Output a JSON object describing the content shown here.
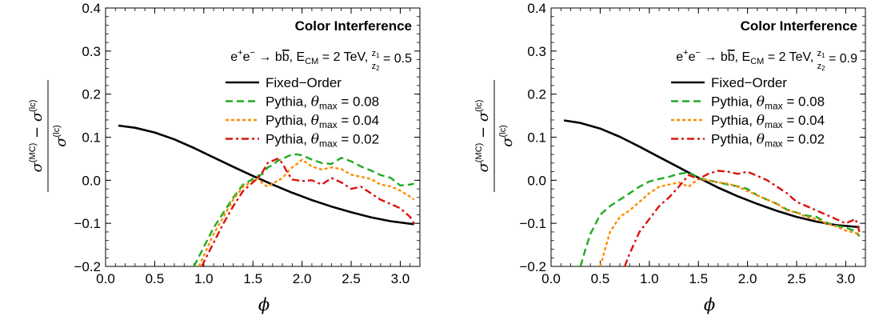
{
  "chart_data": [
    {
      "type": "line",
      "title": "Color Interference",
      "process": {
        "lhs": "e",
        "lhs_sup": "+",
        "lhs2": "e",
        "lhs2_sup": "−",
        "arrow": " → ",
        "final": "b",
        "final_bar": "b",
        "sep": ", ",
        "ecm_sym": "E",
        "ecm_sub": "CM",
        "ecm_val": " = 2 TeV, ",
        "ratio_num": "z",
        "ratio_num_sub": "1",
        "ratio_den": "z",
        "ratio_den_sub": "2",
        "ratio_val": " = 0.5"
      },
      "xlabel": "ϕ",
      "ylabel": {
        "sigma": "σ",
        "mc": "(MC)",
        "minus": " − ",
        "lc": "(lc)"
      },
      "xlim": [
        0,
        3.2
      ],
      "ylim": [
        -0.2,
        0.4
      ],
      "x_ticks": [
        "0.0",
        "0.5",
        "1.0",
        "1.5",
        "2.0",
        "2.5",
        "3.0"
      ],
      "y_ticks": [
        "−0.2",
        "−0.1",
        "0.0",
        "0.1",
        "0.2",
        "0.3",
        "0.4"
      ],
      "grid": false,
      "legend_position": "top-right",
      "series": [
        {
          "name": "Fixed−Order",
          "color": "#000000",
          "style": "solid",
          "x": [
            0.13,
            0.3,
            0.5,
            0.7,
            0.9,
            1.1,
            1.3,
            1.5,
            1.7,
            1.9,
            2.1,
            2.3,
            2.5,
            2.7,
            2.9,
            3.1,
            3.14
          ],
          "y": [
            0.127,
            0.122,
            0.111,
            0.095,
            0.075,
            0.053,
            0.031,
            0.01,
            -0.01,
            -0.029,
            -0.046,
            -0.061,
            -0.074,
            -0.086,
            -0.095,
            -0.101,
            -0.102
          ]
        },
        {
          "name": "Pythia, θmax = 0.08",
          "color": "#22aa22",
          "style": "dashed",
          "x": [
            0.9,
            1.0,
            1.1,
            1.2,
            1.3,
            1.4,
            1.5,
            1.55,
            1.6,
            1.65,
            1.7,
            1.75,
            1.8,
            1.85,
            1.9,
            1.95,
            2.0,
            2.1,
            2.2,
            2.3,
            2.4,
            2.5,
            2.6,
            2.7,
            2.8,
            2.9,
            3.0,
            3.1,
            3.14
          ],
          "y": [
            -0.2,
            -0.155,
            -0.11,
            -0.075,
            -0.04,
            -0.01,
            0.003,
            0.01,
            0.015,
            0.03,
            0.035,
            0.045,
            0.05,
            0.055,
            0.06,
            0.06,
            0.058,
            0.048,
            0.04,
            0.038,
            0.052,
            0.044,
            0.032,
            0.023,
            0.012,
            0.006,
            -0.012,
            -0.01,
            -0.008
          ]
        },
        {
          "name": "Pythia, θmax = 0.04",
          "color": "#ff8c00",
          "style": "dotted",
          "x": [
            0.95,
            1.0,
            1.1,
            1.2,
            1.3,
            1.4,
            1.5,
            1.55,
            1.6,
            1.65,
            1.7,
            1.8,
            1.85,
            1.9,
            1.95,
            2.0,
            2.05,
            2.1,
            2.2,
            2.3,
            2.4,
            2.5,
            2.6,
            2.7,
            2.8,
            2.9,
            3.0,
            3.1,
            3.14
          ],
          "y": [
            -0.2,
            -0.175,
            -0.125,
            -0.085,
            -0.045,
            -0.015,
            -0.002,
            0.004,
            -0.008,
            -0.015,
            -0.008,
            0.005,
            0.018,
            0.03,
            0.038,
            0.048,
            0.04,
            0.032,
            0.025,
            0.03,
            0.026,
            0.013,
            0.008,
            0.003,
            -0.01,
            -0.014,
            -0.024,
            -0.038,
            -0.045
          ]
        },
        {
          "name": "Pythia, θmax = 0.02",
          "color": "#dd1111",
          "style": "dashdot",
          "x": [
            0.98,
            1.0,
            1.1,
            1.2,
            1.3,
            1.4,
            1.5,
            1.55,
            1.6,
            1.65,
            1.7,
            1.75,
            1.8,
            1.85,
            1.9,
            1.95,
            2.0,
            2.1,
            2.2,
            2.3,
            2.4,
            2.5,
            2.6,
            2.7,
            2.8,
            2.9,
            3.0,
            3.1,
            3.14
          ],
          "y": [
            -0.2,
            -0.19,
            -0.145,
            -0.1,
            -0.06,
            -0.025,
            -0.005,
            0.005,
            0.02,
            0.04,
            0.045,
            0.05,
            0.04,
            0.018,
            0.002,
            0.0,
            -0.002,
            0.0,
            -0.01,
            0.005,
            -0.005,
            -0.02,
            -0.015,
            -0.03,
            -0.045,
            -0.055,
            -0.065,
            -0.085,
            -0.1
          ]
        }
      ]
    },
    {
      "type": "line",
      "title": "Color Interference",
      "process": {
        "lhs": "e",
        "lhs_sup": "+",
        "lhs2": "e",
        "lhs2_sup": "−",
        "arrow": " → ",
        "final": "b",
        "final_bar": "b",
        "sep": ", ",
        "ecm_sym": "E",
        "ecm_sub": "CM",
        "ecm_val": " = 2 TeV, ",
        "ratio_num": "z",
        "ratio_num_sub": "1",
        "ratio_den": "z",
        "ratio_den_sub": "2",
        "ratio_val": " = 0.9"
      },
      "xlabel": "ϕ",
      "ylabel": {
        "sigma": "σ",
        "mc": "(MC)",
        "minus": " − ",
        "lc": "(lc)"
      },
      "xlim": [
        0,
        3.2
      ],
      "ylim": [
        -0.2,
        0.4
      ],
      "x_ticks": [
        "0.0",
        "0.5",
        "1.0",
        "1.5",
        "2.0",
        "2.5",
        "3.0"
      ],
      "y_ticks": [
        "−0.2",
        "−0.1",
        "0.0",
        "0.1",
        "0.2",
        "0.3",
        "0.4"
      ],
      "grid": false,
      "legend_position": "top-right",
      "series": [
        {
          "name": "Fixed−Order",
          "color": "#000000",
          "style": "solid",
          "x": [
            0.13,
            0.3,
            0.5,
            0.7,
            0.9,
            1.1,
            1.3,
            1.5,
            1.7,
            1.9,
            2.1,
            2.3,
            2.5,
            2.7,
            2.9,
            3.1,
            3.14
          ],
          "y": [
            0.139,
            0.133,
            0.12,
            0.101,
            0.078,
            0.054,
            0.03,
            0.006,
            -0.017,
            -0.037,
            -0.055,
            -0.071,
            -0.085,
            -0.096,
            -0.104,
            -0.108,
            -0.109
          ]
        },
        {
          "name": "Pythia, θmax = 0.08",
          "color": "#22aa22",
          "style": "dashed",
          "x": [
            0.3,
            0.35,
            0.4,
            0.5,
            0.6,
            0.7,
            0.8,
            0.9,
            1.0,
            1.1,
            1.2,
            1.3,
            1.4,
            1.5,
            1.6,
            1.7,
            1.8,
            1.9,
            2.0,
            2.1,
            2.2,
            2.3,
            2.4,
            2.5,
            2.6,
            2.7,
            2.8,
            2.9,
            3.0,
            3.1,
            3.14
          ],
          "y": [
            -0.2,
            -0.16,
            -0.125,
            -0.08,
            -0.06,
            -0.045,
            -0.03,
            -0.015,
            -0.003,
            0.003,
            0.008,
            0.015,
            0.018,
            0.005,
            0.0,
            -0.005,
            -0.01,
            -0.014,
            -0.02,
            -0.035,
            -0.045,
            -0.055,
            -0.068,
            -0.075,
            -0.082,
            -0.085,
            -0.098,
            -0.105,
            -0.11,
            -0.118,
            -0.13
          ]
        },
        {
          "name": "Pythia, θmax = 0.04",
          "color": "#ff8c00",
          "style": "dotted",
          "x": [
            0.5,
            0.55,
            0.6,
            0.7,
            0.8,
            0.9,
            1.0,
            1.1,
            1.2,
            1.3,
            1.4,
            1.5,
            1.6,
            1.7,
            1.8,
            1.9,
            2.0,
            2.1,
            2.2,
            2.3,
            2.4,
            2.5,
            2.6,
            2.7,
            2.8,
            2.9,
            3.0,
            3.1,
            3.14
          ],
          "y": [
            -0.2,
            -0.16,
            -0.12,
            -0.085,
            -0.07,
            -0.05,
            -0.03,
            -0.015,
            -0.01,
            -0.005,
            -0.015,
            0.003,
            0.0,
            -0.005,
            -0.008,
            -0.015,
            -0.025,
            -0.035,
            -0.045,
            -0.055,
            -0.07,
            -0.075,
            -0.085,
            -0.09,
            -0.1,
            -0.107,
            -0.117,
            -0.122,
            -0.13
          ]
        },
        {
          "name": "Pythia, θmax = 0.02",
          "color": "#dd1111",
          "style": "dashdot",
          "x": [
            0.75,
            0.8,
            0.9,
            1.0,
            1.1,
            1.2,
            1.3,
            1.4,
            1.5,
            1.6,
            1.7,
            1.8,
            1.9,
            2.0,
            2.1,
            2.2,
            2.3,
            2.4,
            2.5,
            2.6,
            2.7,
            2.8,
            2.9,
            3.0,
            3.1,
            3.14
          ],
          "y": [
            -0.2,
            -0.17,
            -0.12,
            -0.09,
            -0.06,
            -0.04,
            -0.015,
            0.012,
            0.003,
            0.015,
            0.022,
            0.02,
            0.015,
            0.02,
            0.01,
            0.0,
            -0.015,
            -0.03,
            -0.05,
            -0.06,
            -0.07,
            -0.08,
            -0.09,
            -0.1,
            -0.09,
            -0.12
          ]
        }
      ]
    }
  ]
}
